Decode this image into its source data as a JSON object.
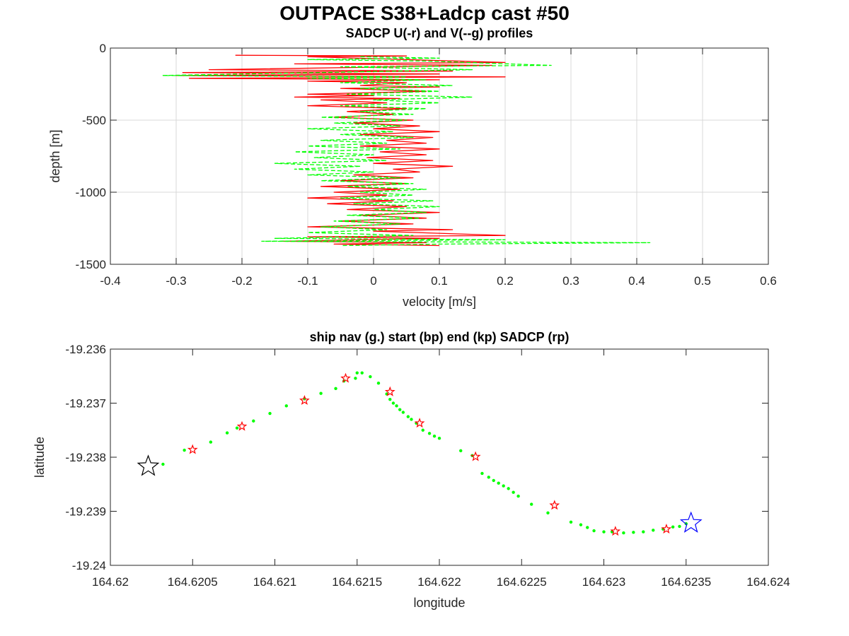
{
  "figure": {
    "title": "OUTPACE S38+Ladcp cast #50"
  },
  "colors": {
    "u_profile": "#ff0000",
    "v_profile": "#00ff00",
    "nav": "#00ff00",
    "sadcp_star": "#ff0000",
    "start_star": "#000000",
    "end_star": "#0000ff",
    "grid": "#d9d9d9"
  },
  "chart_data": [
    {
      "type": "line",
      "title": "SADCP U(-r) and V(--g) profiles",
      "xlabel": "velocity [m/s]",
      "ylabel": "depth [m]",
      "xlim": [
        -0.4,
        0.6
      ],
      "ylim": [
        -1500,
        0
      ],
      "grid": true,
      "x_ticks": [
        -0.4,
        -0.3,
        -0.2,
        -0.1,
        0,
        0.1,
        0.2,
        0.3,
        0.4,
        0.5,
        0.6
      ],
      "y_ticks": [
        0,
        -500,
        -1000,
        -1500
      ],
      "x_tick_labels": [
        "-0.4",
        "-0.3",
        "-0.2",
        "-0.1",
        "0",
        "0.1",
        "0.2",
        "0.3",
        "0.4",
        "0.5",
        "0.6"
      ],
      "y_tick_labels": [
        "0",
        "-500",
        "-1000",
        "-1500"
      ],
      "series": [
        {
          "style": "solid",
          "color": "#ff0000",
          "points": [
            [
              -0.21,
              -50
            ],
            [
              0.05,
              -55
            ],
            [
              -0.1,
              -60
            ],
            [
              0.2,
              -100
            ],
            [
              -0.12,
              -110
            ],
            [
              0.18,
              -120
            ],
            [
              -0.25,
              -150
            ],
            [
              0.12,
              -160
            ],
            [
              -0.29,
              -170
            ],
            [
              0.1,
              -180
            ],
            [
              -0.3,
              -190
            ],
            [
              0.2,
              -200
            ],
            [
              -0.28,
              -210
            ],
            [
              0.1,
              -220
            ],
            [
              -0.1,
              -230
            ],
            [
              0.05,
              -240
            ],
            [
              -0.02,
              -260
            ],
            [
              0.1,
              -270
            ],
            [
              -0.05,
              -280
            ],
            [
              0.08,
              -300
            ],
            [
              -0.1,
              -320
            ],
            [
              0.0,
              -330
            ],
            [
              -0.12,
              -340
            ],
            [
              0.04,
              -350
            ],
            [
              -0.08,
              -360
            ],
            [
              0.02,
              -380
            ],
            [
              -0.1,
              -400
            ],
            [
              0.05,
              -420
            ],
            [
              -0.04,
              -440
            ],
            [
              0.03,
              -460
            ],
            [
              -0.06,
              -480
            ],
            [
              0.06,
              -500
            ],
            [
              -0.03,
              -520
            ],
            [
              0.07,
              -540
            ],
            [
              0.0,
              -560
            ],
            [
              0.1,
              -580
            ],
            [
              -0.02,
              -600
            ],
            [
              0.09,
              -620
            ],
            [
              0.02,
              -640
            ],
            [
              0.08,
              -660
            ],
            [
              -0.02,
              -680
            ],
            [
              0.1,
              -700
            ],
            [
              0.01,
              -720
            ],
            [
              0.08,
              -740
            ],
            [
              -0.01,
              -760
            ],
            [
              0.09,
              -780
            ],
            [
              0.0,
              -800
            ],
            [
              0.12,
              -820
            ],
            [
              0.03,
              -840
            ],
            [
              0.07,
              -860
            ],
            [
              -0.03,
              -880
            ],
            [
              0.06,
              -900
            ],
            [
              -0.05,
              -920
            ],
            [
              0.05,
              -940
            ],
            [
              -0.08,
              -960
            ],
            [
              0.04,
              -980
            ],
            [
              -0.06,
              -1000
            ],
            [
              0.02,
              -1020
            ],
            [
              -0.1,
              -1040
            ],
            [
              0.03,
              -1060
            ],
            [
              -0.07,
              -1080
            ],
            [
              0.05,
              -1100
            ],
            [
              -0.04,
              -1120
            ],
            [
              0.1,
              -1140
            ],
            [
              -0.02,
              -1160
            ],
            [
              0.08,
              -1180
            ],
            [
              -0.05,
              -1200
            ],
            [
              0.06,
              -1220
            ],
            [
              -0.1,
              -1240
            ],
            [
              0.12,
              -1260
            ],
            [
              0.0,
              -1270
            ],
            [
              0.2,
              -1300
            ],
            [
              -0.1,
              -1310
            ],
            [
              0.1,
              -1320
            ],
            [
              -0.14,
              -1340
            ],
            [
              0.08,
              -1350
            ],
            [
              -0.06,
              -1360
            ],
            [
              0.1,
              -1370
            ]
          ]
        },
        {
          "style": "dashed",
          "color": "#00ff00",
          "points": [
            [
              -0.02,
              -60
            ],
            [
              0.1,
              -70
            ],
            [
              -0.1,
              -80
            ],
            [
              0.08,
              -90
            ],
            [
              0.27,
              -120
            ],
            [
              -0.05,
              -130
            ],
            [
              0.15,
              -150
            ],
            [
              -0.32,
              -190
            ],
            [
              0.05,
              -200
            ],
            [
              -0.1,
              -210
            ],
            [
              0.08,
              -220
            ],
            [
              -0.05,
              -240
            ],
            [
              0.12,
              -260
            ],
            [
              -0.02,
              -280
            ],
            [
              0.1,
              -300
            ],
            [
              -0.04,
              -320
            ],
            [
              0.15,
              -340
            ],
            [
              0.0,
              -360
            ],
            [
              0.1,
              -380
            ],
            [
              -0.05,
              -400
            ],
            [
              0.08,
              -420
            ],
            [
              -0.02,
              -440
            ],
            [
              0.06,
              -460
            ],
            [
              -0.08,
              -480
            ],
            [
              0.05,
              -500
            ],
            [
              -0.06,
              -520
            ],
            [
              0.04,
              -540
            ],
            [
              -0.1,
              -560
            ],
            [
              0.03,
              -580
            ],
            [
              -0.05,
              -600
            ],
            [
              0.06,
              -620
            ],
            [
              -0.08,
              -640
            ],
            [
              0.02,
              -660
            ],
            [
              -0.1,
              -680
            ],
            [
              0.04,
              -700
            ],
            [
              -0.12,
              -720
            ],
            [
              0.0,
              -740
            ],
            [
              -0.09,
              -760
            ],
            [
              0.02,
              -780
            ],
            [
              -0.15,
              -800
            ],
            [
              -0.02,
              -820
            ],
            [
              -0.12,
              -840
            ],
            [
              0.0,
              -860
            ],
            [
              -0.1,
              -880
            ],
            [
              0.04,
              -900
            ],
            [
              -0.08,
              -920
            ],
            [
              0.06,
              -940
            ],
            [
              -0.04,
              -960
            ],
            [
              0.08,
              -980
            ],
            [
              -0.02,
              -1000
            ],
            [
              0.06,
              -1020
            ],
            [
              -0.05,
              -1040
            ],
            [
              0.09,
              -1060
            ],
            [
              -0.03,
              -1080
            ],
            [
              0.1,
              -1100
            ],
            [
              0.0,
              -1120
            ],
            [
              0.08,
              -1140
            ],
            [
              -0.04,
              -1160
            ],
            [
              0.07,
              -1180
            ],
            [
              -0.06,
              -1200
            ],
            [
              0.04,
              -1220
            ],
            [
              -0.08,
              -1240
            ],
            [
              0.02,
              -1260
            ],
            [
              -0.1,
              -1280
            ],
            [
              0.06,
              -1300
            ],
            [
              -0.15,
              -1320
            ],
            [
              0.2,
              -1330
            ],
            [
              -0.17,
              -1340
            ],
            [
              0.42,
              -1350
            ],
            [
              0.1,
              -1360
            ],
            [
              -0.05,
              -1370
            ]
          ]
        }
      ]
    },
    {
      "type": "scatter",
      "title": "ship nav (g.) start (bp) end (kp) SADCP (rp)",
      "xlabel": "longitude",
      "ylabel": "latitude",
      "xlim": [
        164.62,
        164.624
      ],
      "ylim": [
        -19.24,
        -19.236
      ],
      "grid": false,
      "x_ticks": [
        164.62,
        164.6205,
        164.621,
        164.6215,
        164.622,
        164.6225,
        164.623,
        164.6235,
        164.624
      ],
      "y_ticks": [
        -19.236,
        -19.237,
        -19.238,
        -19.239,
        -19.24
      ],
      "x_tick_labels": [
        "164.62",
        "164.6205",
        "164.621",
        "164.6215",
        "164.622",
        "164.6225",
        "164.623",
        "164.6235",
        "164.624"
      ],
      "y_tick_labels": [
        "-19.236",
        "-19.237",
        "-19.238",
        "-19.239",
        "-19.24"
      ],
      "nav": [
        [
          164.62032,
          -19.23813
        ],
        [
          164.62045,
          -19.23787
        ],
        [
          164.62061,
          -19.23772
        ],
        [
          164.62071,
          -19.23755
        ],
        [
          164.62077,
          -19.23746
        ],
        [
          164.62087,
          -19.23733
        ],
        [
          164.62097,
          -19.23719
        ],
        [
          164.62107,
          -19.23705
        ],
        [
          164.62118,
          -19.23692
        ],
        [
          164.62128,
          -19.23682
        ],
        [
          164.62137,
          -19.23673
        ],
        [
          164.62142,
          -19.23659
        ],
        [
          164.62149,
          -19.23654
        ],
        [
          164.6215,
          -19.23644
        ],
        [
          164.62153,
          -19.23644
        ],
        [
          164.62158,
          -19.23651
        ],
        [
          164.62163,
          -19.23663
        ],
        [
          164.62168,
          -19.23683
        ],
        [
          164.6217,
          -19.23693
        ],
        [
          164.62172,
          -19.237
        ],
        [
          164.62174,
          -19.23705
        ],
        [
          164.62176,
          -19.23712
        ],
        [
          164.62178,
          -19.23717
        ],
        [
          164.62181,
          -19.23725
        ],
        [
          164.62183,
          -19.2373
        ],
        [
          164.62186,
          -19.23737
        ],
        [
          164.6219,
          -19.2375
        ],
        [
          164.62194,
          -19.23756
        ],
        [
          164.62197,
          -19.23761
        ],
        [
          164.622,
          -19.23765
        ],
        [
          164.62213,
          -19.23788
        ],
        [
          164.6222,
          -19.23797
        ],
        [
          164.62226,
          -19.2383
        ],
        [
          164.6223,
          -19.23837
        ],
        [
          164.62233,
          -19.23843
        ],
        [
          164.62236,
          -19.23848
        ],
        [
          164.62239,
          -19.23853
        ],
        [
          164.62242,
          -19.23858
        ],
        [
          164.62245,
          -19.23865
        ],
        [
          164.62248,
          -19.23872
        ],
        [
          164.62256,
          -19.23887
        ],
        [
          164.62266,
          -19.23903
        ],
        [
          164.6228,
          -19.2392
        ],
        [
          164.62286,
          -19.23925
        ],
        [
          164.6229,
          -19.2393
        ],
        [
          164.62294,
          -19.23936
        ],
        [
          164.623,
          -19.23938
        ],
        [
          164.62305,
          -19.23938
        ],
        [
          164.62312,
          -19.2394
        ],
        [
          164.62318,
          -19.23939
        ],
        [
          164.62324,
          -19.23938
        ],
        [
          164.6233,
          -19.23935
        ],
        [
          164.62336,
          -19.23933
        ],
        [
          164.62342,
          -19.23929
        ],
        [
          164.62346,
          -19.23928
        ],
        [
          164.6235,
          -19.23923
        ]
      ],
      "sadcp": [
        [
          164.6205,
          -19.23786
        ],
        [
          164.6208,
          -19.23743
        ],
        [
          164.62118,
          -19.23695
        ],
        [
          164.62143,
          -19.23654
        ],
        [
          164.6217,
          -19.23679
        ],
        [
          164.62188,
          -19.23737
        ],
        [
          164.62222,
          -19.23799
        ],
        [
          164.6227,
          -19.23889
        ],
        [
          164.62307,
          -19.23937
        ],
        [
          164.62338,
          -19.23933
        ]
      ],
      "start": [
        164.62023,
        -19.23817
      ],
      "end": [
        164.62353,
        -19.23922
      ]
    }
  ]
}
